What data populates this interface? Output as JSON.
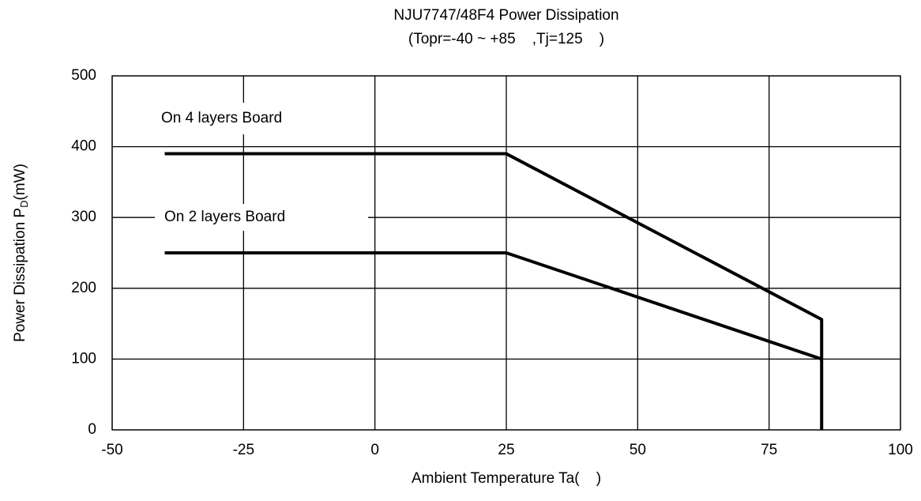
{
  "chart_data": {
    "type": "line",
    "title": "NJU7747/48F4 Power Dissipation",
    "subtitle": "(Topr=-40 ~ +85    ,Tj=125    )",
    "xlabel": "Ambient Temperature Ta(    )",
    "ylabel": [
      "Power Dissipation P",
      "D",
      "(mW)"
    ],
    "xlim": [
      -50,
      100
    ],
    "xticks": [
      -50,
      -25,
      0,
      25,
      50,
      75,
      100
    ],
    "ylim": [
      0,
      500
    ],
    "yticks": [
      0,
      100,
      200,
      300,
      400,
      500
    ],
    "grid": true,
    "series": [
      {
        "name": "On 4 layers Board",
        "color": "#000000",
        "x": [
          -40,
          25,
          85,
          85
        ],
        "values": [
          390,
          390,
          156,
          0
        ]
      },
      {
        "name": "On 2 layers Board",
        "color": "#000000",
        "x": [
          -40,
          25,
          85
        ],
        "values": [
          250,
          250,
          100
        ]
      }
    ]
  }
}
